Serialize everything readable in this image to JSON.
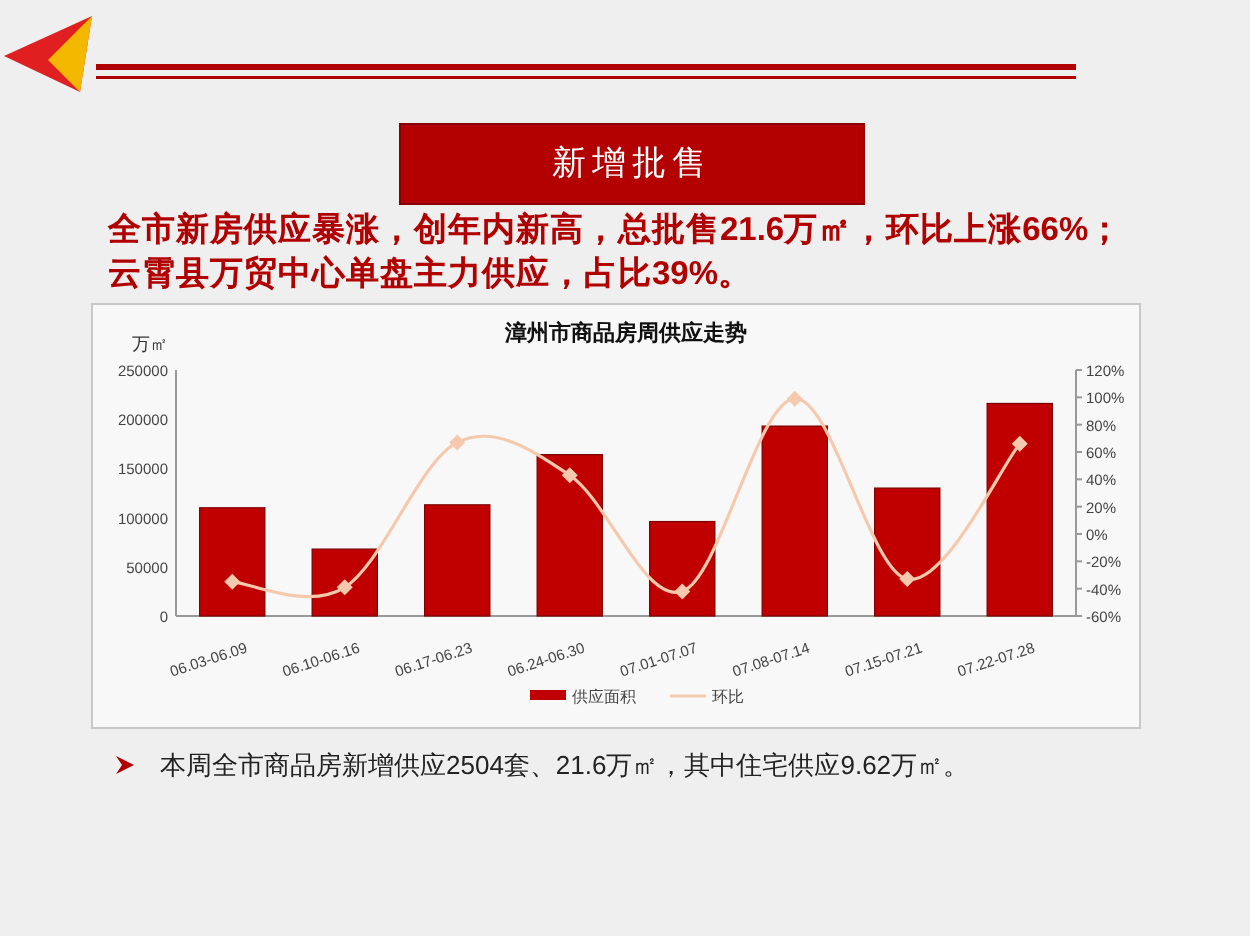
{
  "chart_data": {
    "type": "bar",
    "title": "漳州市商品房周供应走势",
    "ylabel": "万㎡",
    "categories": [
      "06.03-06.09",
      "06.10-06.16",
      "06.17-06.23",
      "06.24-06.30",
      "07.01-07.07",
      "07.08-07.14",
      "07.15-07.21",
      "07.22-07.28"
    ],
    "series": [
      {
        "name": "供应面积",
        "color": "#c00000",
        "values": [
          110000,
          68000,
          113000,
          164000,
          96000,
          193000,
          130000,
          216000
        ]
      },
      {
        "name": "环比",
        "type": "line",
        "axis": "y2",
        "marker": "diamond",
        "color": "#f5c9ad",
        "values": [
          -35,
          -39,
          67,
          43,
          -42,
          99,
          -33,
          66
        ]
      }
    ],
    "ylim": [
      0,
      250000
    ],
    "yticks": [
      0,
      50000,
      100000,
      150000,
      200000,
      250000
    ],
    "y2lim": [
      -60,
      120
    ],
    "y2ticks": [
      {
        "value": -60,
        "label": "-60%"
      },
      {
        "value": -40,
        "label": "-40%"
      },
      {
        "value": -20,
        "label": "-20%"
      },
      {
        "value": 0,
        "label": "0%"
      },
      {
        "value": 20,
        "label": "20%"
      },
      {
        "value": 40,
        "label": "40%"
      },
      {
        "value": 60,
        "label": "60%"
      },
      {
        "value": 80,
        "label": "80%"
      },
      {
        "value": 100,
        "label": "100%"
      },
      {
        "value": 120,
        "label": "120%"
      }
    ],
    "legend": "bottom",
    "annotations": [
      "新增批售",
      "全市新房供应暴涨，创年内新高，总批售21.6万㎡，环比上涨66%；云霄县万贸中心单盘主力供应，占比39%。",
      "本周全市商品房新增供应2504套、21.6万㎡，其中住宅供应9.62万㎡。"
    ]
  }
}
